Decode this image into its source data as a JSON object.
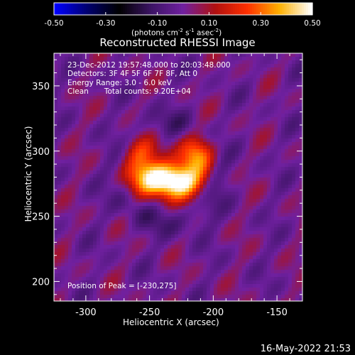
{
  "chart_data": {
    "type": "heatmap",
    "title": "Reconstructed RHESSI Image",
    "xlabel": "Heliocentric X (arcsec)",
    "ylabel": "Heliocentric Y (arcsec)",
    "xlim": [
      -325,
      -130
    ],
    "ylim": [
      185,
      375
    ],
    "x_ticks": [
      -300,
      -250,
      -200,
      -150
    ],
    "y_ticks": [
      200,
      250,
      300,
      350
    ],
    "colorbar": {
      "label_main": "(photons cm",
      "label_exp1": "-2",
      "label_mid1": " s",
      "label_exp2": "-1",
      "label_mid2": " asec",
      "label_exp3": "-2",
      "label_end": ")",
      "range": [
        -0.5,
        0.5
      ],
      "ticks": [
        -0.5,
        -0.3,
        -0.1,
        0.1,
        0.3,
        0.5
      ],
      "tick_labels": [
        "-0.50",
        "-0.30",
        "-0.10",
        "0.10",
        "0.30",
        "0.50"
      ],
      "colormap": [
        "#0000ff",
        "#000070",
        "#000000",
        "#3c1464",
        "#7020a0",
        "#b01010",
        "#ff3000",
        "#ffb000",
        "#ffffff"
      ]
    },
    "sources": [
      {
        "x": -248,
        "y": 280,
        "sx": 14,
        "sy": 10,
        "amp": 0.42
      },
      {
        "x": -226,
        "y": 276,
        "sx": 13,
        "sy": 9,
        "amp": 0.45
      },
      {
        "x": -212,
        "y": 298,
        "sx": 10,
        "sy": 11,
        "amp": 0.32
      },
      {
        "x": -257,
        "y": 300,
        "sx": 11,
        "sy": 9,
        "amp": 0.22
      }
    ],
    "peak": [
      -230,
      275
    ]
  },
  "annotations": [
    "23-Dec-2012 19:57:48.000 to 20:03:48.000",
    "Detectors: 3F 4F 5F 6F 7F 8F, Att 0",
    "Energy Range: 3.0 - 6.0 keV"
  ],
  "clean_label": "Clean",
  "total_counts": "Total counts: 9.20E+04",
  "peak_label": "Position of Peak = [-230,275]",
  "timestamp": "16-May-2022 21:53"
}
